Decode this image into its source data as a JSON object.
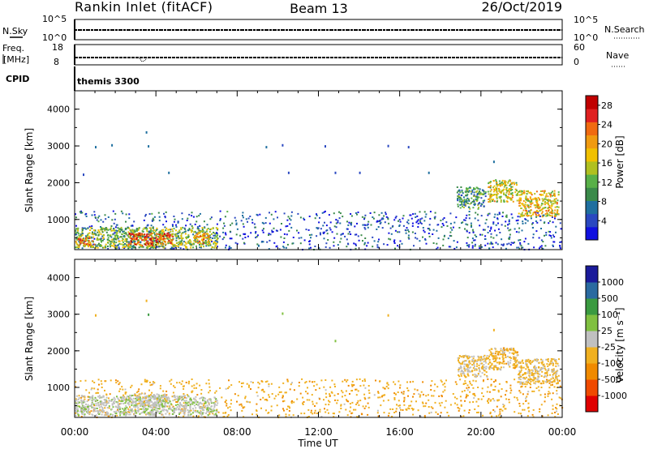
{
  "header": {
    "station": "Rankin Inlet (fitACF)",
    "beam": "Beam 13",
    "date": "26/Oct/2019"
  },
  "time_axis": {
    "ticks": [
      "00:00",
      "04:00",
      "08:00",
      "12:00",
      "16:00",
      "20:00",
      "00:00"
    ],
    "xlabel": "Time UT",
    "range_hours": [
      0,
      24
    ]
  },
  "status_panels": {
    "nsky": {
      "label": "N.Sky",
      "left_ticks": [
        "10^5",
        "10^0"
      ]
    },
    "nsearch": {
      "label": "N.Search",
      "right_ticks": [
        "10^5",
        "10^0"
      ]
    },
    "freq": {
      "label_line1": "Freq.",
      "label_line2": "[MHz]",
      "left_ticks": [
        "18",
        "8"
      ]
    },
    "nave": {
      "label": "Nave",
      "right_ticks": [
        "60",
        "0"
      ]
    },
    "cpid": {
      "label": "CPID",
      "value": "themis 3300"
    }
  },
  "colors": {
    "power_scale": [
      "#1010e0",
      "#2a48c0",
      "#1f6f9f",
      "#3a8a4a",
      "#58b048",
      "#b0c020",
      "#f0c000",
      "#f09a10",
      "#f06a10",
      "#e02020",
      "#c00000"
    ],
    "velocity_scale": [
      "#e00000",
      "#f04a00",
      "#f08a00",
      "#f0b020",
      "#c0c0c0",
      "#80c040",
      "#3a9a40",
      "#2a6aa0",
      "#1a1a9a"
    ]
  },
  "chart_data": [
    {
      "type": "heatmap",
      "name": "power",
      "ylabel": "Slant Range [km]",
      "yticks": [
        "1000",
        "2000",
        "3000",
        "4000"
      ],
      "ylim": [
        180,
        4500
      ],
      "xlim": [
        0,
        24
      ],
      "colorbar_label": "Power [dB]",
      "colorbar_ticks": [
        "4",
        "8",
        "12",
        "16",
        "20",
        "24",
        "28"
      ],
      "colorbar_range": [
        0,
        30
      ],
      "regions": [
        {
          "t0": 0.0,
          "t1": 24.0,
          "r0": 200,
          "r1": 1250,
          "value": 5
        },
        {
          "t0": 0.0,
          "t1": 7.0,
          "r0": 250,
          "r1": 800,
          "value": 13
        },
        {
          "t0": 2.6,
          "t1": 4.8,
          "r0": 300,
          "r1": 650,
          "value": 24
        },
        {
          "t0": 5.8,
          "t1": 6.6,
          "r0": 350,
          "r1": 650,
          "value": 20
        },
        {
          "t0": 0.0,
          "t1": 1.0,
          "r0": 320,
          "r1": 520,
          "value": 21
        },
        {
          "t0": 18.8,
          "t1": 20.2,
          "r0": 1300,
          "r1": 1900,
          "value": 10
        },
        {
          "t0": 20.3,
          "t1": 21.8,
          "r0": 1500,
          "r1": 2100,
          "value": 16
        },
        {
          "t0": 21.8,
          "t1": 23.8,
          "r0": 1100,
          "r1": 1800,
          "value": 18
        }
      ],
      "scatter": [
        {
          "t": 3.5,
          "r": 3400,
          "value": 8
        },
        {
          "t": 1.0,
          "r": 3000,
          "value": 6
        },
        {
          "t": 1.8,
          "r": 3050,
          "value": 6
        },
        {
          "t": 3.6,
          "r": 3020,
          "value": 6
        },
        {
          "t": 9.4,
          "r": 3000,
          "value": 6
        },
        {
          "t": 10.2,
          "r": 3050,
          "value": 4
        },
        {
          "t": 12.3,
          "r": 3020,
          "value": 5
        },
        {
          "t": 15.4,
          "r": 3030,
          "value": 5
        },
        {
          "t": 16.4,
          "r": 3000,
          "value": 5
        },
        {
          "t": 20.6,
          "r": 2600,
          "value": 6
        },
        {
          "t": 10.5,
          "r": 2300,
          "value": 5
        },
        {
          "t": 12.8,
          "r": 2300,
          "value": 5
        },
        {
          "t": 14.0,
          "r": 2300,
          "value": 5
        },
        {
          "t": 17.4,
          "r": 2300,
          "value": 6
        },
        {
          "t": 4.6,
          "r": 2300,
          "value": 6
        },
        {
          "t": 0.4,
          "r": 2250,
          "value": 5
        }
      ]
    },
    {
      "type": "heatmap",
      "name": "velocity",
      "ylabel": "Slant Range [km]",
      "yticks": [
        "1000",
        "2000",
        "3000",
        "4000"
      ],
      "ylim": [
        180,
        4500
      ],
      "xlim": [
        0,
        24
      ],
      "colorbar_label": "Velocity [m s⁻¹]",
      "colorbar_ticks": [
        "1000",
        "500",
        "100",
        "25",
        "-25",
        "-100",
        "-500",
        "-1000"
      ],
      "colorbar_range": [
        -1200,
        1200
      ],
      "regions": [
        {
          "t0": 0.0,
          "t1": 24.0,
          "r0": 200,
          "r1": 1250,
          "value": -300
        },
        {
          "t0": 0.0,
          "t1": 7.0,
          "r0": 250,
          "r1": 800,
          "value": 60
        },
        {
          "t0": 2.6,
          "t1": 4.5,
          "r0": 500,
          "r1": 850,
          "value": 10
        },
        {
          "t0": 18.8,
          "t1": 20.3,
          "r0": 1300,
          "r1": 1900,
          "value": -150
        },
        {
          "t0": 20.3,
          "t1": 21.8,
          "r0": 1500,
          "r1": 2100,
          "value": -250
        },
        {
          "t0": 21.8,
          "t1": 23.8,
          "r0": 1100,
          "r1": 1800,
          "value": -200
        }
      ],
      "scatter": [
        {
          "t": 3.5,
          "r": 3400,
          "value": -300
        },
        {
          "t": 1.0,
          "r": 3000,
          "value": -300
        },
        {
          "t": 3.6,
          "r": 3020,
          "value": 400
        },
        {
          "t": 10.2,
          "r": 3050,
          "value": 200
        },
        {
          "t": 15.4,
          "r": 3000,
          "value": -300
        },
        {
          "t": 20.6,
          "r": 2600,
          "value": -300
        },
        {
          "t": 12.8,
          "r": 2300,
          "value": 300
        }
      ]
    }
  ]
}
